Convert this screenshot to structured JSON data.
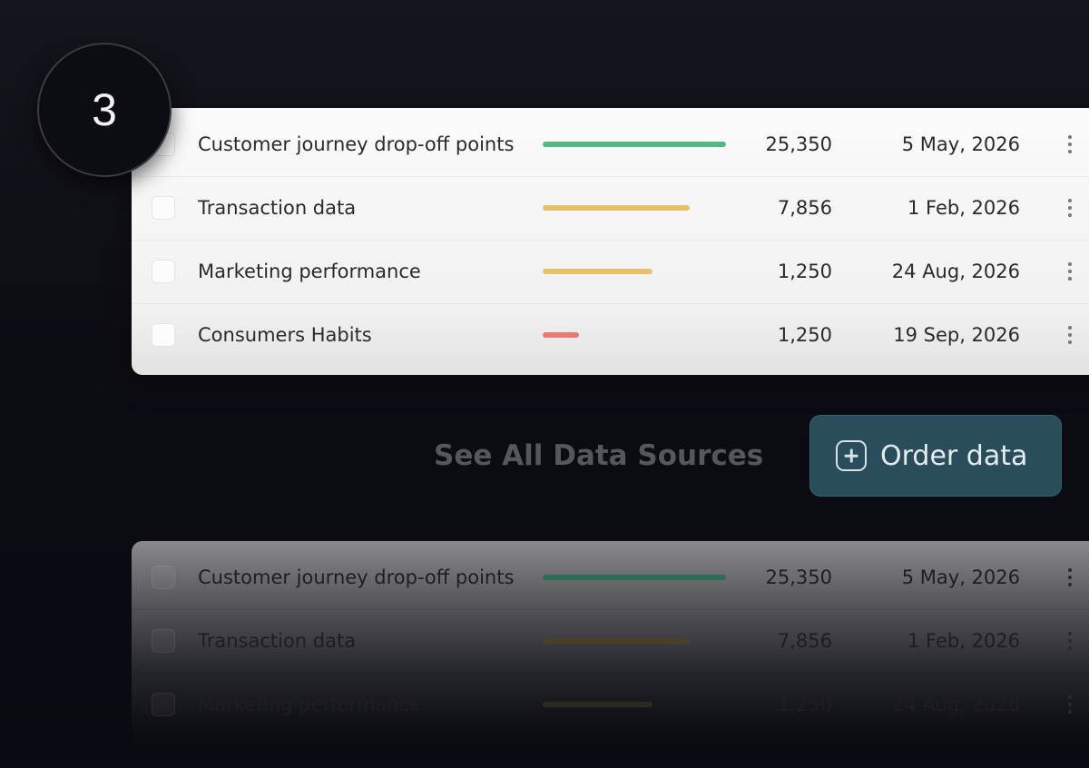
{
  "step_number": "3",
  "rows": [
    {
      "title": "Customer journey drop-off points",
      "progress": 1.0,
      "bar_color": "#52b886",
      "count": "25,350",
      "date": "5 May, 2026"
    },
    {
      "title": "Transaction data",
      "progress": 0.8,
      "bar_color": "#e6c06a",
      "count": "7,856",
      "date": "1 Feb, 2026"
    },
    {
      "title": "Marketing performance",
      "progress": 0.6,
      "bar_color": "#e6c06a",
      "count": "1,250",
      "date": "24 Aug, 2026"
    },
    {
      "title": "Consumers Habits",
      "progress": 0.2,
      "bar_color": "#e97a72",
      "count": "1,250",
      "date": "19 Sep, 2026"
    }
  ],
  "ghost_rows": [
    {
      "title": "Customer journey drop-off points",
      "progress": 1.0,
      "bar_color": "#2a6e55",
      "count": "25,350",
      "date": "5 May, 2026"
    },
    {
      "title": "Transaction data",
      "progress": 0.8,
      "bar_color": "#4a4028",
      "count": "7,856",
      "date": "1 Feb, 2026"
    },
    {
      "title": "Marketing performance",
      "progress": 0.6,
      "bar_color": "#2e2a22",
      "count": "1,250",
      "date": "24 Aug, 2026"
    }
  ],
  "see_all_label": "See All Data Sources",
  "order_button": {
    "label": "Order data",
    "icon": "plus-square-icon"
  }
}
